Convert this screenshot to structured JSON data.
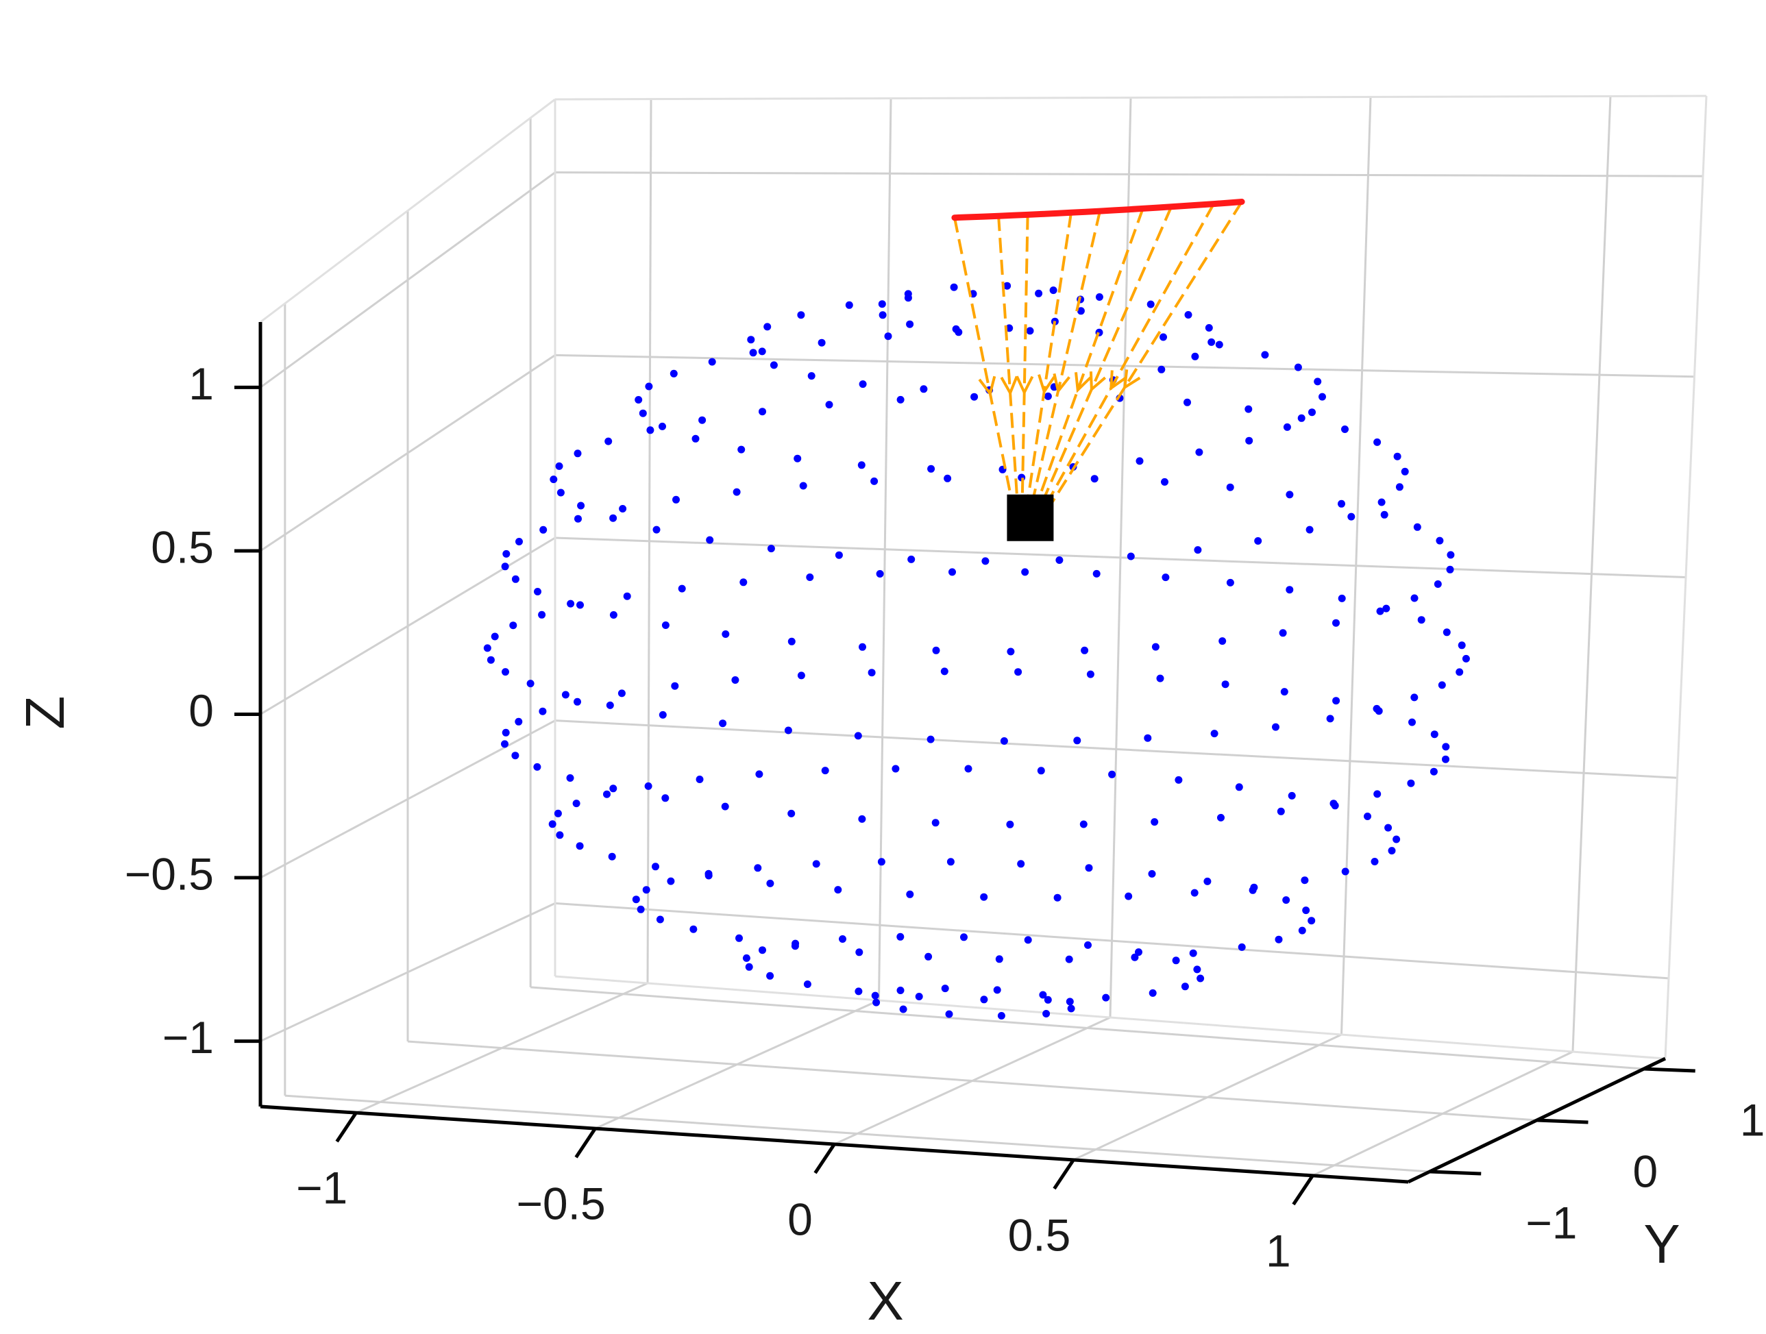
{
  "chart_data": {
    "type": "scatter",
    "projection": "3d",
    "xlabel": "X",
    "ylabel": "Y",
    "zlabel": "Z",
    "xlim": [
      -1.2,
      1.2
    ],
    "ylim": [
      -1.2,
      1.2
    ],
    "zlim": [
      -1.2,
      1.2
    ],
    "grid": true,
    "x_ticks": [
      {
        "value": -1,
        "label": "−1"
      },
      {
        "value": -0.5,
        "label": "−0.5"
      },
      {
        "value": 0,
        "label": "0"
      },
      {
        "value": 0.5,
        "label": "0.5"
      },
      {
        "value": 1,
        "label": "1"
      }
    ],
    "y_ticks": [
      {
        "value": -1,
        "label": "−1"
      },
      {
        "value": 0,
        "label": "0"
      },
      {
        "value": 1,
        "label": "1"
      }
    ],
    "z_ticks": [
      {
        "value": -1,
        "label": "−1"
      },
      {
        "value": -0.5,
        "label": "−0.5"
      },
      {
        "value": 0,
        "label": "0"
      },
      {
        "value": 0.5,
        "label": "0.5"
      },
      {
        "value": 1,
        "label": "1"
      }
    ],
    "sphere": {
      "radius": 1,
      "latitudes_deg": [
        -78,
        -62,
        -46,
        -30,
        -15,
        0,
        15,
        30,
        46,
        62,
        78
      ],
      "points_per_ring": [
        12,
        22,
        30,
        36,
        40,
        42,
        40,
        36,
        30,
        22,
        12
      ],
      "color": "#0000ff"
    },
    "curve": {
      "color": "#ff1a1a",
      "points": [
        [
          -0.3,
          0.95,
          0.95
        ],
        [
          0.0,
          0.98,
          0.96
        ],
        [
          0.3,
          0.95,
          1.0
        ]
      ]
    },
    "target": {
      "color": "#000000",
      "point": [
        0.02,
        0.35,
        0.3
      ]
    },
    "rays": {
      "color": "#ffa500",
      "count": 9
    }
  }
}
